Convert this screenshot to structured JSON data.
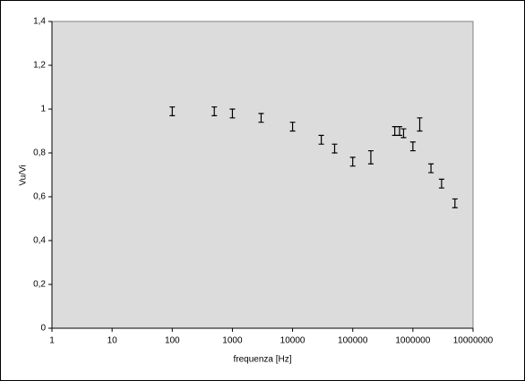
{
  "chart_data": {
    "type": "scatter",
    "x_label": "frequenza [Hz]",
    "y_label": "Vu/Vi",
    "xscale": "log",
    "x": [
      100,
      500,
      1000,
      3000,
      10000,
      30000,
      50000,
      100000,
      200000,
      500000,
      600000,
      700000,
      1000000,
      1300000,
      2000000,
      3000000,
      5000000
    ],
    "values": [
      0.99,
      0.99,
      0.98,
      0.96,
      0.92,
      0.86,
      0.82,
      0.76,
      0.78,
      0.9,
      0.9,
      0.89,
      0.83,
      0.93,
      0.73,
      0.66,
      0.57
    ],
    "errors": [
      0.02,
      0.02,
      0.02,
      0.02,
      0.02,
      0.02,
      0.02,
      0.02,
      0.03,
      0.02,
      0.02,
      0.02,
      0.02,
      0.03,
      0.02,
      0.02,
      0.02
    ],
    "color": "#000000",
    "xlim": [
      1,
      10000000
    ],
    "xticks": [
      1,
      10,
      100,
      1000,
      10000,
      100000,
      1000000,
      10000000
    ],
    "ylim": [
      0,
      1.4
    ],
    "yticks": [
      0,
      {
        "value": 0.2,
        "label": "0,2"
      },
      {
        "value": 0.4,
        "label": "0,4"
      },
      {
        "value": 0.6,
        "label": "0,6"
      },
      {
        "value": 0.8,
        "label": "0,8"
      },
      1,
      {
        "value": 1.2,
        "label": "1,2"
      },
      {
        "value": 1.4,
        "label": "1,4"
      }
    ]
  }
}
